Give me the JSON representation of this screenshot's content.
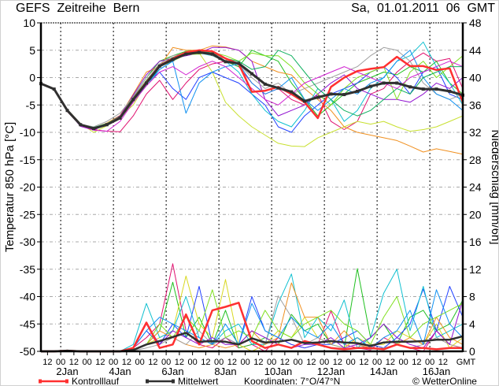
{
  "header": {
    "title": "GEFS  Zeitreihe  Bern",
    "datetime": "Sa,  01.01.2011  06  GMT"
  },
  "legend": {
    "control": "Kontrolllauf",
    "mean": "Mittelwert",
    "coords": "Koordinaten:  7°O/47°N",
    "copyright": "© WetterOnline"
  },
  "colors": {
    "control": "#ff3030",
    "mean": "#303030",
    "grid": "#a8a8a8"
  },
  "chart_data": {
    "type": "line",
    "title": "GEFS Zeitreihe Bern",
    "x_start": "01.01.2011 06 GMT",
    "x_step_hours": 12,
    "x_range_days": [
      0,
      16
    ],
    "grid": true,
    "left_axis": {
      "label": "Temperatur 850 hPa [°C]",
      "ylim": [
        -50,
        10
      ],
      "ticks": [
        "10",
        "5",
        "0",
        "-5",
        "-10",
        "-15",
        "-20",
        "-25",
        "-30",
        "-35",
        "-40",
        "-45",
        "-50"
      ]
    },
    "right_axis": {
      "label": "Niederschlag [mm/6h]",
      "ylim": [
        0,
        48
      ],
      "ticks": [
        "48",
        "44",
        "40",
        "36",
        "32",
        "28",
        "24",
        "20",
        "16",
        "12",
        "8",
        "4",
        "0"
      ]
    },
    "hour_labels": [
      "12",
      "00",
      "12",
      "00",
      "12",
      "00",
      "12",
      "00",
      "12",
      "00",
      "12",
      "00",
      "12",
      "00",
      "12",
      "00",
      "12",
      "00",
      "12",
      "00",
      "12",
      "00",
      "12",
      "00",
      "12",
      "00",
      "12",
      "00",
      "12",
      "00",
      "12"
    ],
    "tz_label": "GMT",
    "date_labels": [
      "2Jan",
      "4Jan",
      "6Jan",
      "8Jan",
      "10Jan",
      "12Jan",
      "14Jan",
      "16Jan"
    ],
    "temperature": {
      "mean": [
        -1.1,
        -2.1,
        -6,
        -8.6,
        -9.3,
        -8.6,
        -7.4,
        -4,
        -1,
        2.1,
        3.3,
        4.3,
        4.6,
        4.3,
        2.9,
        2.6,
        0.7,
        -1.2,
        -1.9,
        -2.6,
        -4.3,
        -3.6,
        -3,
        -3.1,
        -2.5,
        -1.6,
        -1,
        -1,
        -1.7,
        -2.1,
        -2.1,
        -2.5,
        -3.2
      ],
      "control": [
        -1.1,
        -2.1,
        -6,
        -8.6,
        -9.3,
        -8.6,
        -7.3,
        -3.9,
        -0.8,
        2.2,
        3.5,
        4.6,
        5,
        4.8,
        3.5,
        2.5,
        -2.6,
        -2.4,
        -1.7,
        -3,
        -4.5,
        -7.4,
        -1.7,
        0,
        1.2,
        1.6,
        1.9,
        3.8,
        2.1,
        2.1,
        1.4,
        1.7,
        -4.5
      ],
      "members": [
        {
          "color": "#e0106f",
          "values": [
            -1.1,
            -2,
            -6.2,
            -8.8,
            -9.5,
            -9.8,
            -9.9,
            -7,
            -3,
            -0.5,
            -4,
            -1,
            1.5,
            2.5,
            3,
            2,
            -1,
            -3,
            -2,
            -4,
            -5,
            -3,
            -8,
            -9.5,
            -8,
            -3,
            -2,
            1,
            3,
            4.5,
            3,
            3.5,
            -2
          ]
        },
        {
          "color": "#20c020",
          "values": [
            -1.1,
            -2.1,
            -6,
            -8.5,
            -9.3,
            -8.5,
            -7,
            -3.5,
            0,
            3,
            4,
            4.8,
            5,
            4,
            3,
            2,
            5,
            4,
            3,
            -1,
            -4,
            -7,
            -5,
            -3,
            -1,
            0,
            1,
            0.5,
            2,
            1,
            3,
            -1,
            -3
          ]
        },
        {
          "color": "#c8e030",
          "values": [
            -1.1,
            -2.1,
            -5.8,
            -8.4,
            -10,
            -8.8,
            -7.2,
            -5,
            -1,
            2,
            3,
            4.2,
            4.5,
            1,
            -4.5,
            -7,
            -9,
            -10.5,
            -12,
            -12.5,
            -12.6,
            -11,
            -10,
            -9,
            -8,
            -8.5,
            -8,
            -9,
            -9.8,
            -9.5,
            -9,
            -8,
            -7
          ]
        },
        {
          "color": "#f09020",
          "values": [
            -1.1,
            -2,
            -5.9,
            -8.7,
            -9.2,
            -8.3,
            -6.9,
            -3,
            1,
            2,
            5.5,
            5,
            5,
            5.8,
            5.6,
            5,
            3,
            2,
            1,
            0.5,
            -2,
            -4,
            -6,
            -9,
            -10,
            -10.5,
            -11,
            -11.5,
            -12.5,
            -13.6,
            -13,
            -13.5,
            -14
          ]
        },
        {
          "color": "#2040ff",
          "values": [
            -1.1,
            -2.2,
            -6,
            -8.8,
            -9.4,
            -8.6,
            -7.5,
            -4,
            -1,
            1,
            -2,
            -4,
            0,
            1,
            0,
            -1,
            -3,
            -5,
            -9,
            -10,
            -7,
            -5,
            -3,
            -2,
            -1,
            1,
            2,
            0,
            -3,
            1,
            2,
            -3,
            -4
          ]
        },
        {
          "color": "#10c0d0",
          "values": [
            -1.1,
            -2.1,
            -6.1,
            -8.6,
            -9.2,
            -8.4,
            -7.2,
            -4.2,
            -1.5,
            1.5,
            3,
            4.5,
            4.5,
            4,
            3,
            1,
            -3,
            -6,
            -8,
            -9,
            -6,
            -2,
            -4,
            -8,
            -6,
            -2,
            0,
            3,
            4,
            6.5,
            2,
            -1,
            -5
          ]
        },
        {
          "color": "#9010d0",
          "values": [
            -1.1,
            -2,
            -6,
            -8.9,
            -9.6,
            -8.5,
            -7,
            -3.2,
            0.5,
            3,
            3.5,
            4,
            4.5,
            5.5,
            5.5,
            5,
            3,
            -4,
            -7,
            -6,
            -5,
            -3,
            -1,
            0.5,
            -2,
            -3,
            -4,
            -4,
            -4.5,
            -3,
            -1,
            -2,
            0
          ]
        },
        {
          "color": "#a0a0a0",
          "values": [
            -1.1,
            -2.1,
            -6,
            -8.5,
            -9,
            -8,
            -6.5,
            -3.5,
            0,
            2.5,
            4,
            4.5,
            4.8,
            4,
            3.5,
            2.5,
            0,
            -2,
            -1,
            -3,
            -2,
            -1,
            0,
            1,
            2,
            4,
            5.5,
            5,
            3,
            -1,
            -3,
            -4,
            -3
          ]
        },
        {
          "color": "#80e020",
          "values": [
            -1.1,
            -2.1,
            -5.9,
            -8.6,
            -9.3,
            -8.7,
            -7.4,
            -3.8,
            -0.5,
            2,
            3.5,
            4.2,
            4.3,
            4.6,
            4,
            3,
            4.5,
            4,
            4,
            2,
            -1,
            -3,
            -5,
            -2,
            0,
            1,
            2,
            -4,
            1,
            3,
            0,
            2,
            4
          ]
        },
        {
          "color": "#1090f0",
          "values": [
            -1.1,
            -2.1,
            -6,
            -8.7,
            -9.2,
            -8.5,
            -7.3,
            -4,
            -1,
            1.5,
            3,
            -6.5,
            -1,
            1,
            2,
            2.5,
            -1,
            -3,
            -2,
            0,
            -4,
            -6,
            -4,
            -2,
            -3,
            -1,
            0,
            3,
            5,
            0,
            -3,
            -4,
            -6
          ]
        },
        {
          "color": "#10b060",
          "values": [
            -1.1,
            -2.1,
            -6,
            -8.6,
            -9.1,
            -8.4,
            -7.1,
            -3.7,
            -0.5,
            2.3,
            3.7,
            4.6,
            4.9,
            4.5,
            3.5,
            3,
            1.5,
            2,
            5,
            4,
            1,
            -2,
            -4,
            -6,
            -7,
            -6,
            -4,
            -2,
            -3,
            0,
            1,
            2,
            2
          ]
        },
        {
          "color": "#d020d0",
          "values": [
            -1.1,
            -2.1,
            -6,
            -8.8,
            -9.6,
            -9.8,
            -8,
            -4.5,
            -1.5,
            1,
            2,
            0.5,
            2,
            3,
            2,
            0,
            -2,
            -4,
            -5,
            -3,
            -1,
            0,
            1,
            2,
            1,
            0,
            -1,
            -2,
            0,
            1,
            2,
            3,
            2
          ]
        }
      ]
    },
    "precipitation": {
      "mean": [
        0,
        0,
        0.1,
        0,
        0,
        0,
        0,
        0.2,
        1,
        1.5,
        2.1,
        2.7,
        1.4,
        1.5,
        1.4,
        1,
        1.9,
        1.3,
        1.4,
        1.7,
        1.2,
        1.3,
        1.5,
        1.3,
        1.2,
        0.8,
        1.3,
        1.4,
        1.4,
        1.5,
        1.7,
        1.7,
        2.2
      ],
      "control": [
        0,
        0,
        0.1,
        0,
        0,
        0,
        0,
        0.5,
        4.2,
        0.5,
        1,
        5.4,
        1,
        6,
        6.5,
        7.1,
        1.5,
        0.5,
        1,
        0.5,
        1.5,
        1,
        0.5,
        0.3,
        0.5,
        0.5,
        0.3,
        1,
        0.5,
        0.5,
        0.3,
        0.5,
        0.5
      ],
      "members": [
        {
          "color": "#e0106f",
          "values": [
            0,
            0,
            0.1,
            0,
            0,
            0,
            0,
            0.5,
            2,
            4,
            12.8,
            3,
            1,
            0.5,
            2,
            0.5,
            1,
            0,
            2,
            1,
            0.5,
            1,
            5.9,
            1,
            0.5,
            0.2,
            2,
            1,
            0.5,
            0,
            3,
            1,
            0.5
          ]
        },
        {
          "color": "#20c020",
          "values": [
            0,
            0,
            0.1,
            0,
            0,
            0,
            0,
            0.3,
            1,
            3,
            10.1,
            2,
            5,
            1,
            6,
            0.5,
            1,
            2,
            1,
            5.4,
            3,
            4,
            1,
            0.5,
            12.1,
            2,
            4,
            1,
            5,
            6,
            3,
            4,
            7.5
          ]
        },
        {
          "color": "#d8d820",
          "values": [
            0,
            0,
            0,
            0,
            0,
            0,
            0,
            0.2,
            1,
            2,
            3,
            11,
            4,
            2,
            10.5,
            1,
            0,
            1,
            3,
            2,
            5,
            2,
            1,
            0.5,
            2,
            1,
            1,
            3,
            2,
            1,
            4,
            0.5,
            2
          ]
        },
        {
          "color": "#2040ff",
          "values": [
            0,
            0,
            0,
            0,
            0,
            0,
            0,
            0.5,
            3,
            1,
            4,
            2,
            9.5,
            1,
            2,
            1,
            8,
            3,
            2,
            1,
            0.5,
            1,
            1,
            2,
            3,
            1,
            0.5,
            2,
            4,
            9.1,
            3,
            9.5,
            5
          ]
        },
        {
          "color": "#10c0d0",
          "values": [
            0,
            0,
            0,
            0,
            0,
            0,
            0,
            1,
            7,
            2,
            3,
            8,
            2,
            1,
            3,
            4,
            1,
            1,
            7,
            11.3,
            2,
            5,
            3,
            7.5,
            0.5,
            2,
            8.5,
            12,
            3,
            9.5,
            2,
            3,
            4
          ]
        },
        {
          "color": "#f09020",
          "values": [
            0,
            0,
            0,
            0,
            0,
            0,
            0,
            0.2,
            1,
            3,
            2,
            1,
            0.5,
            1,
            0.5,
            1,
            3,
            1,
            2,
            10,
            5,
            5,
            1,
            3,
            1,
            0.5,
            0.3,
            1,
            2,
            1,
            5,
            2,
            1
          ]
        },
        {
          "color": "#a0a0a0",
          "values": [
            0,
            0,
            0,
            0,
            0,
            0,
            0,
            0.1,
            0.5,
            1,
            2,
            1,
            3,
            1,
            2,
            1,
            2,
            1,
            8.1,
            5,
            1,
            2,
            1,
            0.5,
            1,
            0.3,
            0.5,
            1,
            0.5,
            1,
            2,
            1,
            0.5
          ]
        },
        {
          "color": "#9010d0",
          "values": [
            0,
            0,
            0.1,
            0,
            0,
            0,
            0,
            0.5,
            4,
            1,
            3,
            2,
            1,
            2,
            1,
            1,
            3,
            2,
            1,
            0.5,
            1,
            1,
            2,
            0.5,
            1,
            2,
            4,
            2,
            1,
            0.5,
            3,
            1,
            7.5
          ]
        },
        {
          "color": "#80e020",
          "values": [
            0,
            0,
            0,
            0,
            0,
            0,
            0,
            0.3,
            1,
            4,
            2,
            5,
            3,
            9,
            2,
            3,
            2,
            6,
            3,
            2,
            4,
            5,
            6,
            4,
            3,
            1,
            5,
            8,
            2,
            4,
            5,
            6,
            7
          ]
        },
        {
          "color": "#1090f0",
          "values": [
            0,
            0,
            0,
            0,
            0,
            0,
            0,
            0.5,
            3,
            5,
            4,
            3,
            2,
            1,
            4,
            1,
            7,
            3,
            2,
            5,
            3,
            2,
            4,
            1,
            2,
            0.5,
            2,
            3,
            6,
            1,
            9,
            4,
            2
          ]
        }
      ]
    }
  }
}
